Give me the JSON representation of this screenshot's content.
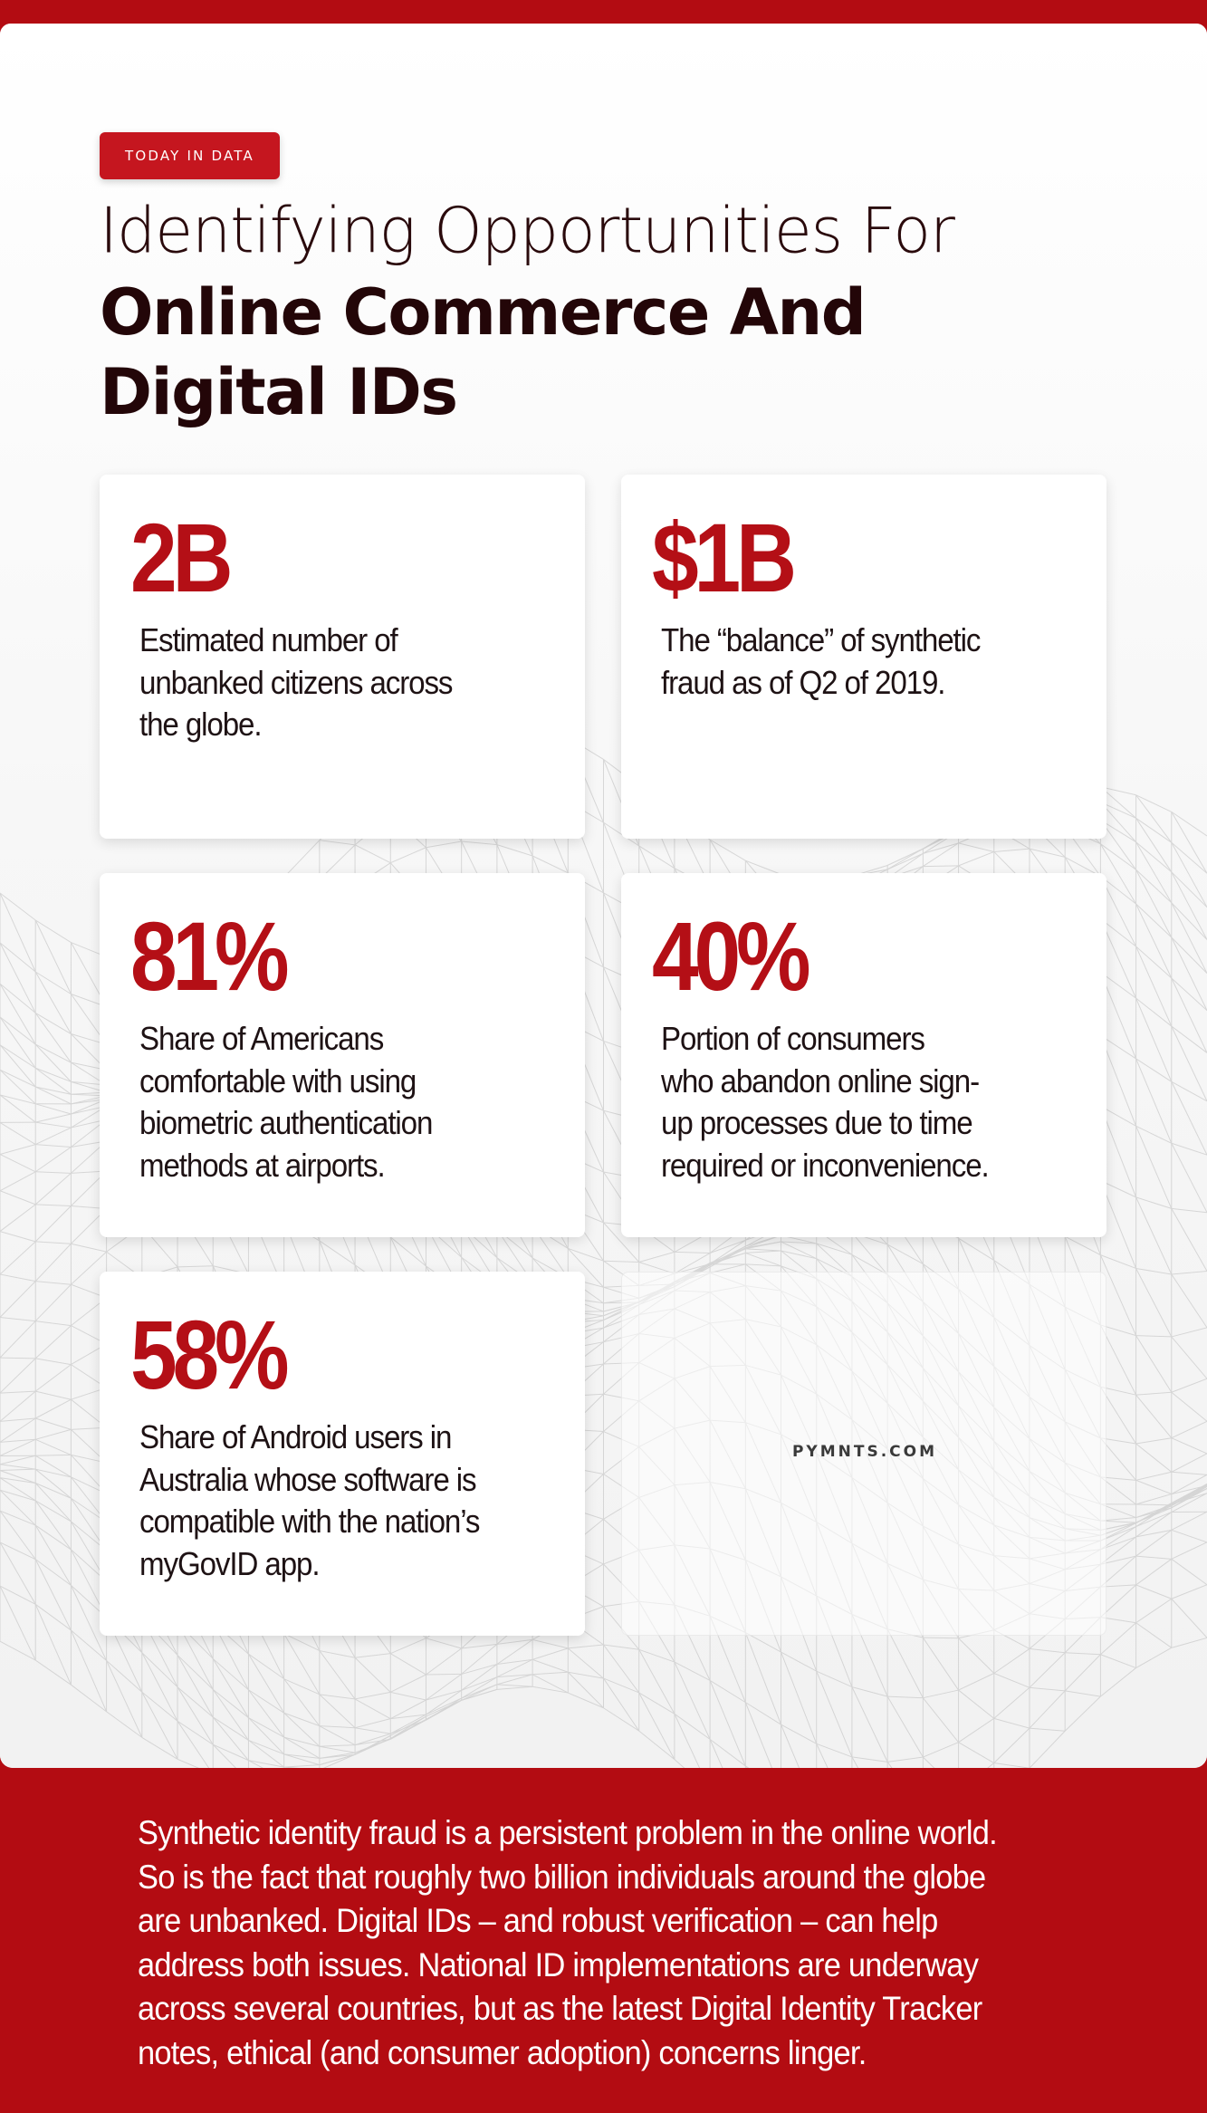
{
  "header": {
    "tag": "TODAY IN DATA",
    "title_line1": "Identifying Opportunities For",
    "title_line2": "Online Commerce And",
    "title_line3": "Digital IDs"
  },
  "stats": [
    {
      "value": "2B",
      "lines": [
        "Estimated number of",
        "unbanked citizens across",
        "the globe."
      ]
    },
    {
      "value": "$1B",
      "lines": [
        "The “balance” of synthetic",
        "fraud as of Q2 of 2019."
      ]
    },
    {
      "value": "81%",
      "lines": [
        "Share of Americans",
        "comfortable with using",
        "biometric authentication",
        "methods at airports."
      ]
    },
    {
      "value": "40%",
      "lines": [
        "Portion of consumers",
        "who abandon online sign-",
        "up processes due to time",
        "required or inconvenience."
      ]
    },
    {
      "value": "58%",
      "lines": [
        "Share of Android users in",
        "Australia whose software is",
        "compatible with the nation’s",
        "myGovID app."
      ]
    }
  ],
  "brand": "PYMNTS.COM",
  "footer": {
    "lines": [
      "Synthetic identity fraud is a persistent problem in the online world.",
      "So is the fact that roughly two billion individuals around the globe",
      "are unbanked. Digital IDs – and robust verification – can help",
      "address both issues. National ID implementations are underway",
      "across several countries, but as the latest Digital Identity Tracker",
      "notes, ethical (and consumer adoption) concerns linger."
    ]
  },
  "colors": {
    "brand_red": "#b30c12",
    "stat_red": "#b40f16",
    "title_dark": "#230608"
  }
}
